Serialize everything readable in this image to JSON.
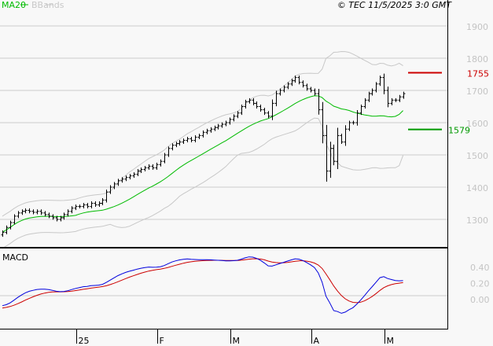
{
  "header": {
    "legend_ma": "MA20",
    "legend_bb": "BBands",
    "copyright": "© TEC 11/5/2025 3:0 GMT"
  },
  "colors": {
    "ma": "#00bb00",
    "bb": "#c8c8c8",
    "macd": "#0000dd",
    "signal": "#cc0000",
    "resistance": "#cc0000",
    "support": "#009900"
  },
  "chart_data": {
    "type": "line",
    "title": "",
    "price_axis": {
      "ticks": [
        "1900",
        "1800",
        "1700",
        "1600",
        "1500",
        "1400",
        "1300"
      ],
      "ylim": [
        1215,
        1955
      ]
    },
    "x_ticks": [
      "25",
      "F",
      "M",
      "A",
      "M"
    ],
    "closes": [
      1260,
      1275,
      1290,
      1310,
      1320,
      1325,
      1328,
      1325,
      1322,
      1325,
      1320,
      1315,
      1310,
      1305,
      1300,
      1305,
      1315,
      1325,
      1335,
      1340,
      1340,
      1345,
      1340,
      1350,
      1345,
      1350,
      1360,
      1385,
      1400,
      1410,
      1420,
      1425,
      1430,
      1435,
      1440,
      1450,
      1455,
      1460,
      1465,
      1460,
      1470,
      1480,
      1500,
      1520,
      1530,
      1535,
      1540,
      1545,
      1550,
      1545,
      1555,
      1560,
      1570,
      1575,
      1580,
      1585,
      1590,
      1595,
      1600,
      1610,
      1620,
      1630,
      1650,
      1665,
      1670,
      1660,
      1650,
      1640,
      1630,
      1620,
      1660,
      1690,
      1700,
      1710,
      1720,
      1730,
      1740,
      1725,
      1715,
      1705,
      1700,
      1690,
      1640,
      1560,
      1450,
      1520,
      1480,
      1560,
      1540,
      1580,
      1600,
      1600,
      1630,
      1650,
      1670,
      1690,
      1700,
      1720,
      1740,
      1700,
      1660,
      1670,
      1670,
      1680,
      1690
    ],
    "x_tick_bar_index": [
      20,
      41,
      60,
      81,
      100
    ],
    "levels": [
      {
        "label": "1755",
        "value": 1755,
        "kind": "resistance"
      },
      {
        "label": "1579",
        "value": 1579,
        "kind": "support"
      }
    ],
    "macd": {
      "label": "MACD",
      "ticks": [
        "0.40",
        "0.20",
        "0.00"
      ],
      "range": [
        -0.17,
        0.53
      ]
    }
  }
}
